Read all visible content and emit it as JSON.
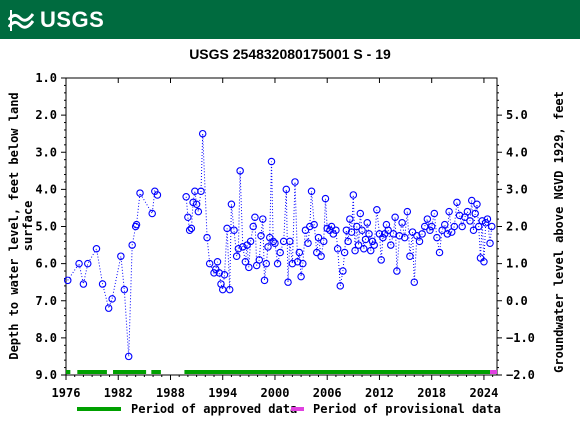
{
  "header": {
    "logo_text": "USGS"
  },
  "chart_data": {
    "type": "scatter",
    "title": "USGS 254832080175001 S  -  19",
    "xlabel": "",
    "ylabel_left": "Depth to water level, feet below land surface",
    "ylabel_left_lines": [
      "Depth to water level, feet below land",
      "surface"
    ],
    "ylabel_right": "Groundwater level above NGVD 1929, feet",
    "xlim": [
      1976,
      2025.5
    ],
    "ylim_left": [
      9.0,
      1.0
    ],
    "ylim_right": [
      -2.0,
      6.0
    ],
    "x_ticks": [
      1976,
      1982,
      1988,
      1994,
      2000,
      2006,
      2012,
      2018,
      2024
    ],
    "x_tick_labels": [
      "1976",
      "1982",
      "1988",
      "1994",
      "2000",
      "2006",
      "2012",
      "2018",
      "2024"
    ],
    "y_left_ticks": [
      1.0,
      2.0,
      3.0,
      4.0,
      5.0,
      6.0,
      7.0,
      8.0,
      9.0
    ],
    "y_left_tick_labels": [
      "1.0",
      "2.0",
      "3.0",
      "4.0",
      "5.0",
      "6.0",
      "7.0",
      "8.0",
      "9.0"
    ],
    "y_right_ticks": [
      5.0,
      4.0,
      3.0,
      2.0,
      1.0,
      0.0,
      -1.0,
      -2.0
    ],
    "y_right_tick_labels": [
      "5.0",
      "4.0",
      "3.0",
      "2.0",
      "1.0",
      "0.0",
      "−1.0",
      "−2.0"
    ],
    "series": [
      {
        "name": "",
        "color": "#0000ff",
        "marker": "open-circle",
        "line": "dotted",
        "points": [
          [
            1976.2,
            6.45
          ],
          [
            1977.5,
            6.0
          ],
          [
            1978.0,
            6.55
          ],
          [
            1978.5,
            6.0
          ],
          [
            1979.5,
            5.6
          ],
          [
            1980.2,
            6.55
          ],
          [
            1980.9,
            7.2
          ],
          [
            1981.3,
            6.95
          ],
          [
            1982.3,
            5.8
          ],
          [
            1982.7,
            6.7
          ],
          [
            1983.2,
            8.5
          ],
          [
            1983.6,
            5.5
          ],
          [
            1984.0,
            5.0
          ],
          [
            1984.1,
            4.95
          ],
          [
            1984.5,
            4.1
          ],
          [
            1985.9,
            4.65
          ],
          [
            1986.2,
            4.05
          ],
          [
            1986.5,
            4.15
          ],
          [
            1989.8,
            4.2
          ],
          [
            1990.0,
            4.75
          ],
          [
            1990.2,
            5.1
          ],
          [
            1990.4,
            5.05
          ],
          [
            1990.6,
            4.35
          ],
          [
            1990.8,
            4.05
          ],
          [
            1991.0,
            4.4
          ],
          [
            1991.2,
            4.6
          ],
          [
            1991.5,
            4.05
          ],
          [
            1991.7,
            2.5
          ],
          [
            1992.2,
            5.3
          ],
          [
            1992.5,
            6.0
          ],
          [
            1993.0,
            6.25
          ],
          [
            1993.2,
            6.15
          ],
          [
            1993.4,
            5.95
          ],
          [
            1993.6,
            6.25
          ],
          [
            1993.8,
            6.55
          ],
          [
            1994.0,
            6.7
          ],
          [
            1994.2,
            6.3
          ],
          [
            1994.5,
            5.05
          ],
          [
            1994.8,
            6.7
          ],
          [
            1995.0,
            4.4
          ],
          [
            1995.3,
            5.1
          ],
          [
            1995.6,
            5.8
          ],
          [
            1995.8,
            5.6
          ],
          [
            1996.0,
            3.5
          ],
          [
            1996.3,
            5.55
          ],
          [
            1996.6,
            5.95
          ],
          [
            1996.8,
            5.5
          ],
          [
            1997.0,
            6.1
          ],
          [
            1997.2,
            5.4
          ],
          [
            1997.5,
            5.0
          ],
          [
            1997.7,
            4.75
          ],
          [
            1997.9,
            6.05
          ],
          [
            1998.2,
            5.9
          ],
          [
            1998.4,
            5.25
          ],
          [
            1998.6,
            4.8
          ],
          [
            1998.8,
            6.45
          ],
          [
            1999.0,
            6.0
          ],
          [
            1999.2,
            5.55
          ],
          [
            1999.4,
            5.3
          ],
          [
            1999.6,
            3.25
          ],
          [
            1999.8,
            5.4
          ],
          [
            2000.0,
            5.45
          ],
          [
            2000.3,
            6.0
          ],
          [
            2000.6,
            5.7
          ],
          [
            2001.0,
            5.4
          ],
          [
            2001.3,
            4.0
          ],
          [
            2001.5,
            6.5
          ],
          [
            2001.7,
            5.4
          ],
          [
            2002.0,
            6.0
          ],
          [
            2002.3,
            3.8
          ],
          [
            2002.6,
            5.95
          ],
          [
            2002.8,
            5.7
          ],
          [
            2003.0,
            6.35
          ],
          [
            2003.2,
            6.0
          ],
          [
            2003.5,
            5.1
          ],
          [
            2003.8,
            5.45
          ],
          [
            2004.0,
            5.0
          ],
          [
            2004.2,
            4.05
          ],
          [
            2004.5,
            4.95
          ],
          [
            2004.8,
            5.7
          ],
          [
            2005.0,
            5.3
          ],
          [
            2005.3,
            5.8
          ],
          [
            2005.6,
            5.4
          ],
          [
            2005.8,
            4.25
          ],
          [
            2006.0,
            5.05
          ],
          [
            2006.3,
            5.1
          ],
          [
            2006.5,
            5.0
          ],
          [
            2006.7,
            5.2
          ],
          [
            2007.0,
            5.1
          ],
          [
            2007.2,
            5.6
          ],
          [
            2007.5,
            6.6
          ],
          [
            2007.8,
            6.2
          ],
          [
            2008.0,
            5.7
          ],
          [
            2008.2,
            5.1
          ],
          [
            2008.4,
            5.4
          ],
          [
            2008.6,
            4.8
          ],
          [
            2008.8,
            5.15
          ],
          [
            2009.0,
            4.15
          ],
          [
            2009.2,
            5.65
          ],
          [
            2009.4,
            5.0
          ],
          [
            2009.6,
            5.5
          ],
          [
            2009.8,
            4.65
          ],
          [
            2010.0,
            5.1
          ],
          [
            2010.2,
            5.6
          ],
          [
            2010.4,
            5.35
          ],
          [
            2010.6,
            4.9
          ],
          [
            2010.8,
            5.2
          ],
          [
            2011.0,
            5.65
          ],
          [
            2011.2,
            5.4
          ],
          [
            2011.4,
            5.5
          ],
          [
            2011.7,
            4.55
          ],
          [
            2012.0,
            5.2
          ],
          [
            2012.2,
            5.9
          ],
          [
            2012.4,
            5.3
          ],
          [
            2012.6,
            5.2
          ],
          [
            2012.8,
            4.95
          ],
          [
            2013.0,
            5.1
          ],
          [
            2013.3,
            5.5
          ],
          [
            2013.6,
            5.2
          ],
          [
            2013.8,
            4.75
          ],
          [
            2014.0,
            6.2
          ],
          [
            2014.3,
            5.25
          ],
          [
            2014.6,
            4.9
          ],
          [
            2014.9,
            5.3
          ],
          [
            2015.2,
            4.6
          ],
          [
            2015.5,
            5.8
          ],
          [
            2015.8,
            5.15
          ],
          [
            2016.0,
            6.5
          ],
          [
            2016.3,
            5.25
          ],
          [
            2016.6,
            5.4
          ],
          [
            2016.9,
            5.2
          ],
          [
            2017.2,
            5.0
          ],
          [
            2017.5,
            4.8
          ],
          [
            2017.8,
            5.1
          ],
          [
            2018.0,
            5.0
          ],
          [
            2018.3,
            4.65
          ],
          [
            2018.6,
            5.3
          ],
          [
            2018.9,
            5.7
          ],
          [
            2019.2,
            5.1
          ],
          [
            2019.5,
            4.95
          ],
          [
            2019.8,
            5.2
          ],
          [
            2020.0,
            4.6
          ],
          [
            2020.3,
            5.15
          ],
          [
            2020.6,
            5.0
          ],
          [
            2020.9,
            4.35
          ],
          [
            2021.2,
            4.7
          ],
          [
            2021.5,
            5.0
          ],
          [
            2021.8,
            4.75
          ],
          [
            2022.1,
            4.6
          ],
          [
            2022.4,
            4.85
          ],
          [
            2022.6,
            4.3
          ],
          [
            2022.8,
            5.1
          ],
          [
            2023.0,
            4.65
          ],
          [
            2023.2,
            4.4
          ],
          [
            2023.4,
            5.0
          ],
          [
            2023.6,
            5.85
          ],
          [
            2023.8,
            4.85
          ],
          [
            2024.0,
            5.95
          ],
          [
            2024.2,
            4.9
          ],
          [
            2024.4,
            4.8
          ],
          [
            2024.7,
            5.45
          ],
          [
            2024.9,
            5.0
          ]
        ]
      }
    ],
    "approved_periods": [
      [
        1976.0,
        1976.5
      ],
      [
        1977.3,
        1980.7
      ],
      [
        1981.4,
        1985.2
      ],
      [
        1985.8,
        1986.9
      ],
      [
        1989.6,
        2024.7
      ]
    ],
    "provisional_periods": [
      [
        2024.7,
        2025.5
      ]
    ],
    "legend": {
      "position": "bottom",
      "items": [
        {
          "label": "Period of approved data",
          "color": "#00a000"
        },
        {
          "label": "Period of provisional data",
          "color": "#e040e0"
        }
      ]
    },
    "grid": false
  }
}
